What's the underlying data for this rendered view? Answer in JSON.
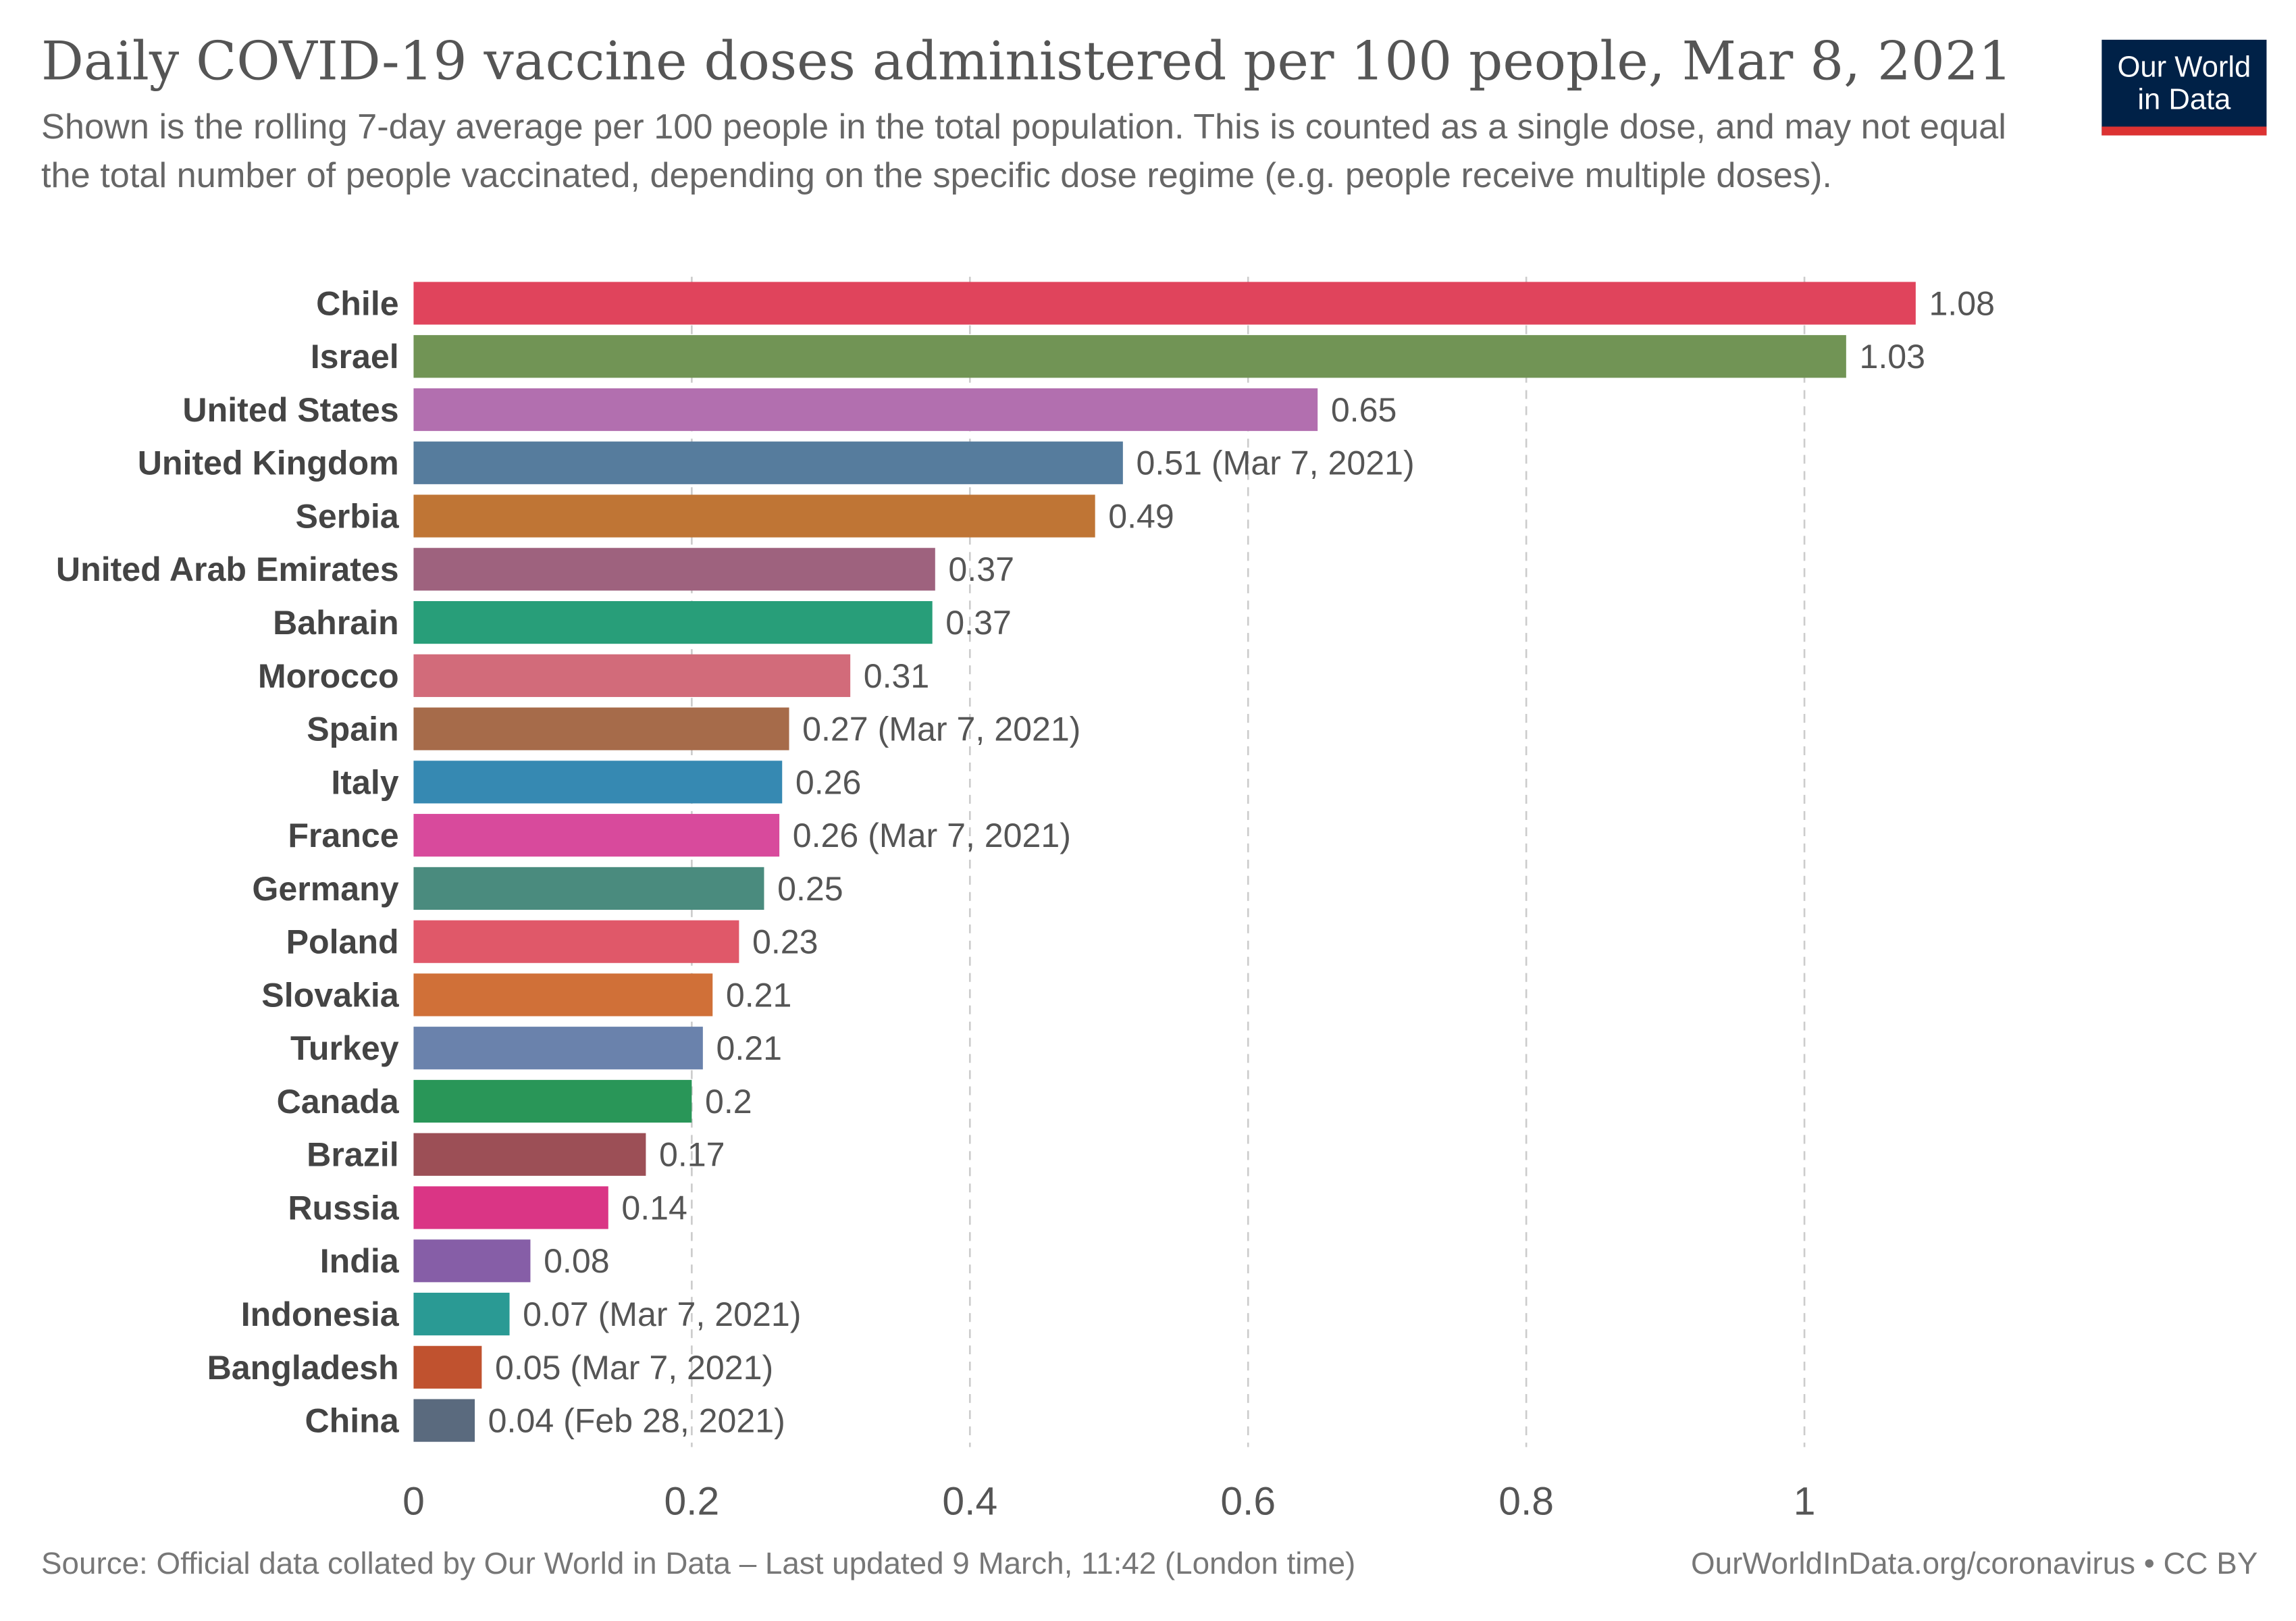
{
  "header": {
    "title": "Daily COVID-19 vaccine doses administered per 100 people, Mar 8, 2021",
    "subtitle": "Shown is the rolling 7-day average per 100 people in the total population. This is counted as a single dose, and may not equal the total number of people vaccinated, depending on the specific dose regime (e.g. people receive multiple doses).",
    "logo_line1": "Our World",
    "logo_line2": "in Data"
  },
  "footer": {
    "source": "Source: Official data collated by Our World in Data – Last updated 9 March, 11:42 (London time)",
    "link": "OurWorldInData.org/coronavirus • CC BY"
  },
  "colors": {
    "logo_background": "#002147",
    "logo_accent": "#dc3232",
    "gridline": "#cccccc"
  },
  "chart_data": {
    "type": "bar",
    "orientation": "horizontal",
    "title": "Daily COVID-19 vaccine doses administered per 100 people, Mar 8, 2021",
    "xlim": [
      0,
      1.1
    ],
    "xticks": [
      0,
      0.2,
      0.4,
      0.6,
      0.8,
      1
    ],
    "xtick_labels": [
      "0",
      "0.2",
      "0.4",
      "0.6",
      "0.8",
      "1"
    ],
    "grid": "vertical-dashed",
    "categories": [
      "Chile",
      "Israel",
      "United States",
      "United Kingdom",
      "Serbia",
      "United Arab Emirates",
      "Bahrain",
      "Morocco",
      "Spain",
      "Italy",
      "France",
      "Germany",
      "Poland",
      "Slovakia",
      "Turkey",
      "Canada",
      "Brazil",
      "Russia",
      "India",
      "Indonesia",
      "Bangladesh",
      "China"
    ],
    "values": [
      1.08,
      1.03,
      0.65,
      0.51,
      0.49,
      0.375,
      0.373,
      0.314,
      0.27,
      0.265,
      0.263,
      0.252,
      0.234,
      0.215,
      0.208,
      0.2,
      0.167,
      0.14,
      0.084,
      0.069,
      0.049,
      0.044
    ],
    "value_labels": [
      "1.08",
      "1.03",
      "0.65",
      "0.51 (Mar 7, 2021)",
      "0.49",
      "0.37",
      "0.37",
      "0.31",
      "0.27 (Mar 7, 2021)",
      "0.26",
      "0.26 (Mar 7, 2021)",
      "0.25",
      "0.23",
      "0.21",
      "0.21",
      "0.2",
      "0.17",
      "0.14",
      "0.08",
      "0.07 (Mar 7, 2021)",
      "0.05 (Mar 7, 2021)",
      "0.04 (Feb 28, 2021)"
    ],
    "bar_colors": [
      "#e0445c",
      "#719455",
      "#b26faf",
      "#567c9d",
      "#bf7535",
      "#9e627e",
      "#289e79",
      "#d26b7a",
      "#a66b4a",
      "#3689b2",
      "#d84a9c",
      "#4a8b7e",
      "#e05869",
      "#d07038",
      "#6a82ac",
      "#299658",
      "#9c4f56",
      "#da3585",
      "#865ea7",
      "#2a9a94",
      "#c0522f",
      "#5a6a7e"
    ]
  }
}
